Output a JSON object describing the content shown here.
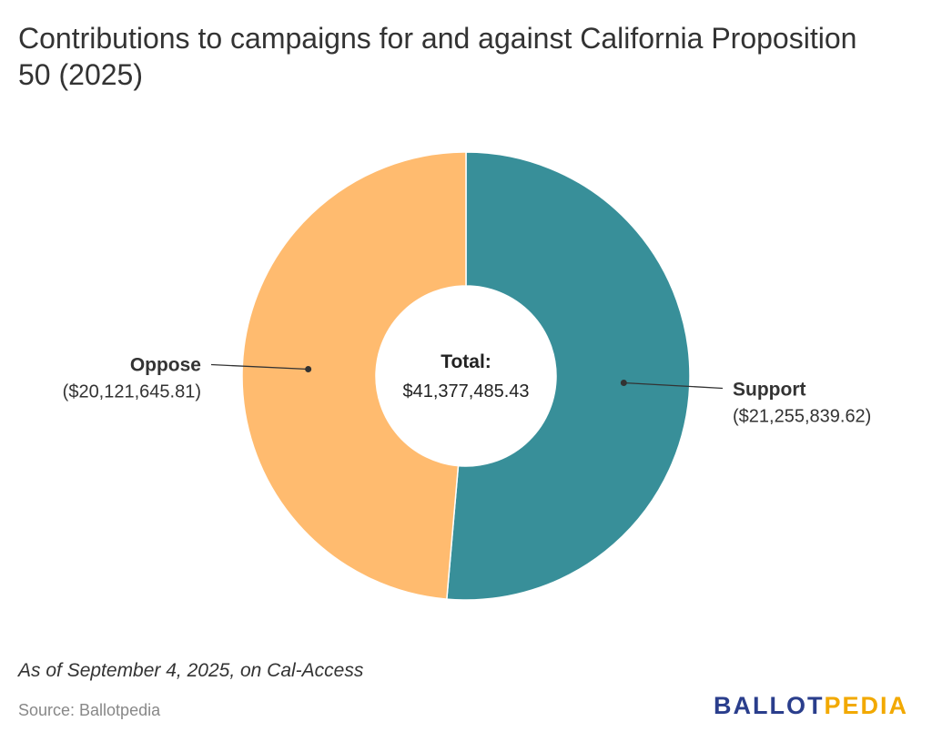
{
  "title": "Contributions to campaigns for and against California Proposition 50 (2025)",
  "note": "As of September 4, 2025, on Cal-Access",
  "source": "Source: Ballotpedia",
  "logo": {
    "part1": "BALLOT",
    "part2": "PEDIA",
    "color1": "#2a3e8c",
    "color2": "#f2a900"
  },
  "chart_data": {
    "type": "pie",
    "variant": "donut",
    "center_label": "Total:",
    "center_value": "$41,377,485.43",
    "total": 41377485.43,
    "slices": [
      {
        "name": "Support",
        "value": 21255839.62,
        "value_label": "($21,255,839.62)",
        "color": "#388f99",
        "label_side": "right"
      },
      {
        "name": "Oppose",
        "value": 20121645.81,
        "value_label": "($20,121,645.81)",
        "color": "#ffbb6f",
        "label_side": "left"
      }
    ]
  }
}
